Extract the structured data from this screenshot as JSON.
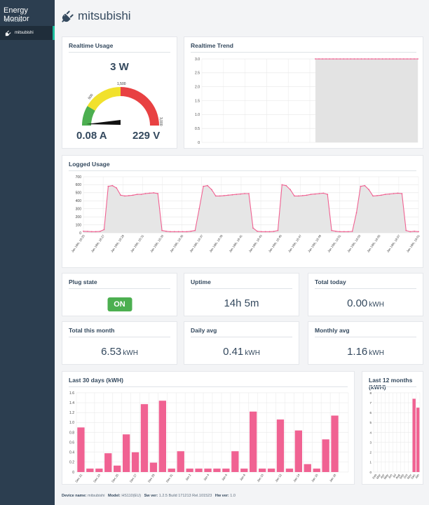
{
  "sidebar": {
    "brand": "Energy Monitor",
    "section": "DEVICES",
    "items": [
      {
        "label": "mitsubishi",
        "icon": "plug-icon"
      }
    ]
  },
  "header": {
    "title": "mitsubishi",
    "icon": "plug-icon"
  },
  "realtime_usage": {
    "title": "Realtime Usage",
    "power": "3 W",
    "current": "0.08 A",
    "voltage": "229 V",
    "gauge": {
      "min": 0,
      "max": 3000,
      "value": 3,
      "tick_labels": [
        "500",
        "1,500",
        "3,000"
      ],
      "colors": [
        "#4caf50",
        "#f1e12c",
        "#e84142"
      ]
    }
  },
  "realtime_trend": {
    "title": "Realtime Trend"
  },
  "logged_usage": {
    "title": "Logged Usage"
  },
  "tiles": {
    "plug_state": {
      "title": "Plug state",
      "value": "ON"
    },
    "uptime": {
      "title": "Uptime",
      "value": "14h 5m"
    },
    "total_today": {
      "title": "Total today",
      "value": "0.00",
      "unit": "kWH"
    },
    "total_month": {
      "title": "Total this month",
      "value": "6.53",
      "unit": "kWH"
    },
    "daily_avg": {
      "title": "Daily avg",
      "value": "0.41",
      "unit": "kWH"
    },
    "monthly_avg": {
      "title": "Monthly avg",
      "value": "1.16",
      "unit": "kWH"
    }
  },
  "last30": {
    "title": "Last 30 days (kWH)"
  },
  "last12": {
    "title": "Last 12 months (kWH)"
  },
  "footer": {
    "device_label": "Device name:",
    "device": "mitsubishi",
    "model_label": "Model:",
    "model": "HS110(EU)",
    "sw_label": "Sw ver:",
    "sw": "1.2.5 Build 171213 Rel.101523",
    "hw_label": "Hw ver:",
    "hw": "1.0"
  },
  "chart_data": [
    {
      "type": "area",
      "title": "Realtime Trend",
      "y_ticks": [
        "0",
        "0.5",
        "1.0",
        "1.5",
        "2.0",
        "2.5",
        "3.0"
      ],
      "ylim": [
        0,
        3
      ],
      "series": [
        {
          "values": [
            3,
            3,
            3,
            3,
            3,
            3,
            3,
            3,
            3,
            3,
            3,
            3,
            3,
            3,
            3,
            3,
            3,
            3,
            3,
            3,
            3,
            3,
            3,
            3,
            3,
            3,
            3,
            3,
            3,
            3
          ]
        }
      ],
      "color": "#f06292"
    },
    {
      "type": "area",
      "title": "Logged Usage",
      "y_ticks": [
        "0",
        "100",
        "200",
        "300",
        "400",
        "500",
        "600",
        "700"
      ],
      "ylim": [
        0,
        700
      ],
      "x_ticks": [
        "Jan 18th, 18:25",
        "Jan 18th, 18:27",
        "Jan 18th, 18:29",
        "Jan 18th, 18:31",
        "Jan 18th, 18:33",
        "Jan 18th, 18:35",
        "Jan 18th, 18:37",
        "Jan 18th, 18:39",
        "Jan 18th, 18:41",
        "Jan 18th, 18:43",
        "Jan 18th, 18:45",
        "Jan 18th, 18:47",
        "Jan 18th, 18:49",
        "Jan 18th, 18:51",
        "Jan 18th, 18:53",
        "Jan 18th, 18:55",
        "Jan 18th, 18:57",
        "Jan 18th, 19:01"
      ],
      "series": [
        {
          "values": [
            20,
            18,
            15,
            15,
            18,
            40,
            580,
            590,
            560,
            470,
            460,
            465,
            470,
            480,
            480,
            490,
            495,
            500,
            490,
            30,
            20,
            15,
            15,
            15,
            15,
            15,
            20,
            30,
            300,
            580,
            590,
            540,
            460,
            460,
            465,
            470,
            475,
            480,
            485,
            490,
            490,
            60,
            20,
            15,
            15,
            15,
            18,
            30,
            600,
            590,
            540,
            460,
            460,
            465,
            470,
            480,
            485,
            490,
            495,
            480,
            30,
            20,
            15,
            15,
            15,
            18,
            250,
            580,
            590,
            540,
            460,
            465,
            470,
            480,
            485,
            490,
            495,
            490,
            30,
            15,
            20,
            15
          ]
        }
      ],
      "color": "#f06292"
    },
    {
      "type": "bar",
      "title": "Last 30 days (kWH)",
      "y_ticks": [
        "0",
        "0.2",
        "0.4",
        "0.6",
        "0.8",
        "1.0",
        "1.2",
        "1.4",
        "1.6"
      ],
      "ylim": [
        0,
        1.6
      ],
      "categories": [
        "Dec 21",
        "Dec 22",
        "Dec 23",
        "Dec 24",
        "Dec 25",
        "Dec 26",
        "Dec 27",
        "Dec 28",
        "Dec 29",
        "Dec 30",
        "Dec 31",
        "Jan 1",
        "Jan 2",
        "Jan 3",
        "Jan 4",
        "Jan 5",
        "Jan 6",
        "Jan 7",
        "Jan 8",
        "Jan 9",
        "Jan 10",
        "Jan 11",
        "Jan 12",
        "Jan 13",
        "Jan 14",
        "Jan 15",
        "Jan 16",
        "Jan 17",
        "Jan 18",
        "Jan 19"
      ],
      "x_ticks": [
        "Dec 21",
        "Dec 23",
        "Dec 25",
        "Dec 27",
        "Dec 29",
        "Dec 31",
        "Jan 2",
        "Jan 4",
        "Jan 6",
        "Jan 8",
        "Jan 10",
        "Jan 12",
        "Jan 14",
        "Jan 16",
        "Jan 18"
      ],
      "values": [
        0.9,
        0.07,
        0.07,
        0.38,
        0.13,
        0.76,
        0.4,
        1.37,
        0.19,
        1.44,
        0.07,
        0.42,
        0.07,
        0.07,
        0.07,
        0.07,
        0.07,
        0.42,
        0.07,
        1.22,
        0.07,
        0.07,
        1.06,
        0.07,
        0.84,
        0.16,
        0.07,
        0.66,
        1.14,
        0
      ],
      "color": "#f06292"
    },
    {
      "type": "bar",
      "title": "Last 12 months (kWH)",
      "y_ticks": [
        "0",
        "1",
        "2",
        "3",
        "4",
        "5",
        "6",
        "7",
        "8"
      ],
      "ylim": [
        0,
        8
      ],
      "categories": [
        "Feb",
        "Mar",
        "Apr",
        "May",
        "Jun",
        "Jul",
        "Aug",
        "Sep",
        "Oct",
        "Nov",
        "Dec",
        "Jan"
      ],
      "values": [
        0,
        0,
        0,
        0,
        0,
        0,
        0,
        0,
        0,
        0,
        7.4,
        6.5
      ],
      "color": "#f06292"
    }
  ]
}
